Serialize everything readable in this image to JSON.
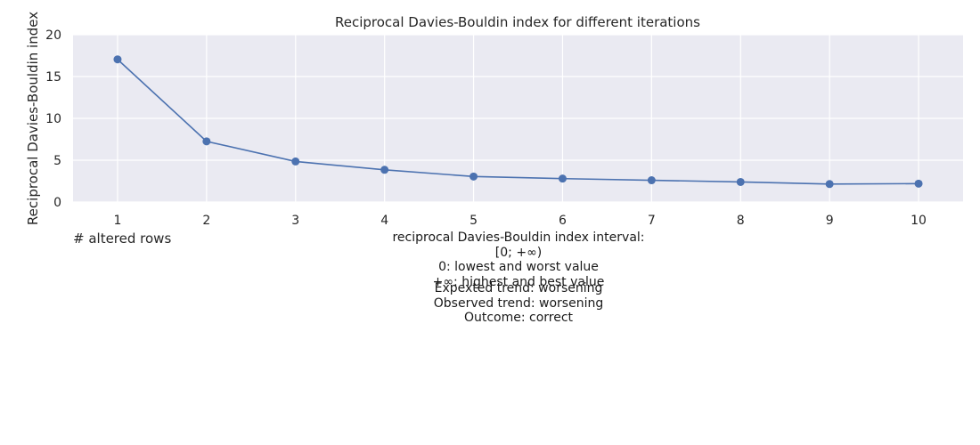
{
  "chart_data": {
    "type": "line",
    "title": "Reciprocal Davies-Bouldin index for different iterations",
    "xlabel": "# altered rows",
    "ylabel": "Reciprocal Davies-Bouldin index",
    "x": [
      1,
      2,
      3,
      4,
      5,
      6,
      7,
      8,
      9,
      10
    ],
    "y": [
      17.05,
      7.25,
      4.85,
      3.85,
      3.05,
      2.8,
      2.6,
      2.4,
      2.15,
      2.2
    ],
    "xticks": [
      1,
      2,
      3,
      4,
      5,
      6,
      7,
      8,
      9,
      10
    ],
    "yticks": [
      0,
      5,
      10,
      15,
      20
    ],
    "xlim": [
      0.5,
      10.5
    ],
    "ylim": [
      0,
      20
    ],
    "grid": true,
    "color": "#4c72b0",
    "background": "#eaeaf2"
  },
  "notes": {
    "interval": [
      "reciprocal Davies-Bouldin index interval: [0; +∞)",
      "0: lowest and worst value",
      "+∞: highest and best value"
    ],
    "trend": [
      "Expexted trend: worsening",
      "Observed trend: worsening",
      "Outcome: correct"
    ]
  }
}
